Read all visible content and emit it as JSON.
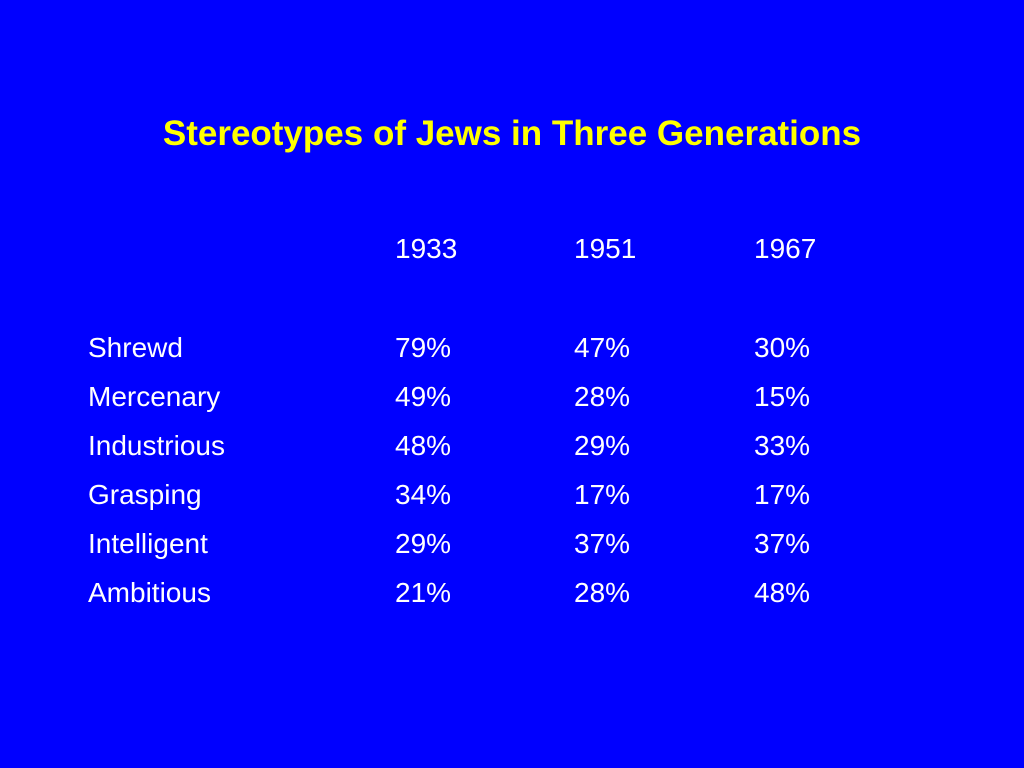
{
  "slide": {
    "title": "Stereotypes of Jews in Three Generations",
    "colors": {
      "background": "#0000ff",
      "title": "#ffff00",
      "text": "#ffffff"
    }
  },
  "table": {
    "columns": [
      "1933",
      "1951",
      "1967"
    ],
    "rows": [
      {
        "label": "Shrewd",
        "values": [
          "79%",
          "47%",
          "30%"
        ]
      },
      {
        "label": "Mercenary",
        "values": [
          "49%",
          "28%",
          "15%"
        ]
      },
      {
        "label": "Industrious",
        "values": [
          "48%",
          "29%",
          "33%"
        ]
      },
      {
        "label": "Grasping",
        "values": [
          "34%",
          "17%",
          "17%"
        ]
      },
      {
        "label": "Intelligent",
        "values": [
          "29%",
          "37%",
          "37%"
        ]
      },
      {
        "label": "Ambitious",
        "values": [
          "21%",
          "28%",
          "48%"
        ]
      }
    ]
  }
}
